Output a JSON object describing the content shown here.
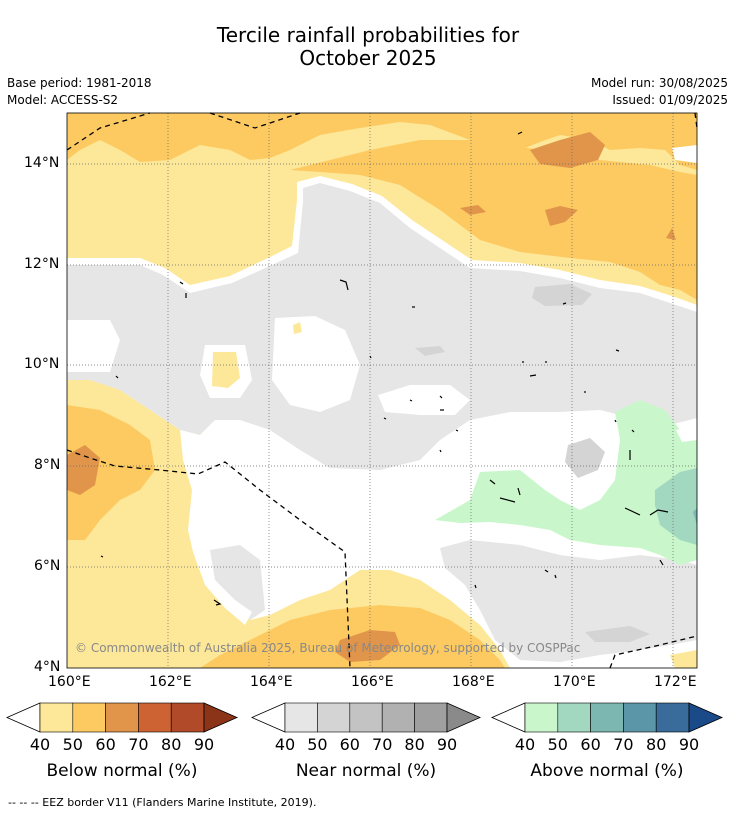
{
  "title_line1": "Tercile rainfall probabilities for",
  "title_line2": "October 2025",
  "base_period": "Base period: 1981-2018",
  "model": "Model: ACCESS-S2",
  "model_run": "Model run: 30/08/2025",
  "issued": "Issued: 01/09/2025",
  "copyright": "© Commonwealth of Australia 2025, Bureau of Meteorology, supported by COSPPac",
  "footer": "--  --  -- EEZ border V11 (Flanders Marine Institute, 2019).",
  "map": {
    "lon_ticks": [
      "160°E",
      "162°E",
      "164°E",
      "166°E",
      "168°E",
      "170°E",
      "172°E"
    ],
    "lat_ticks": [
      "14°N",
      "12°N",
      "10°N",
      "8°N",
      "6°N",
      "4°N"
    ],
    "lon_range": [
      160,
      172.5
    ],
    "lat_range": [
      3.9,
      14.9
    ]
  },
  "colorbars": [
    {
      "label": "Below normal (%)",
      "ticks": [
        "40",
        "50",
        "60",
        "70",
        "80",
        "90"
      ],
      "colors": [
        "#ffffff",
        "#fde89a",
        "#fdca62",
        "#e0954a",
        "#cd6333",
        "#b04a28",
        "#8c3418"
      ]
    },
    {
      "label": "Near normal (%)",
      "ticks": [
        "40",
        "50",
        "60",
        "70",
        "80",
        "90"
      ],
      "colors": [
        "#ffffff",
        "#e6e6e6",
        "#d4d4d4",
        "#c3c3c3",
        "#b1b1b1",
        "#9f9f9f",
        "#8a8a8a"
      ]
    },
    {
      "label": "Above normal (%)",
      "ticks": [
        "40",
        "50",
        "60",
        "70",
        "80",
        "90"
      ],
      "colors": [
        "#ffffff",
        "#c9f7cb",
        "#a3d8c0",
        "#7cb7b1",
        "#5b95a8",
        "#3a6c9b",
        "#1b4a88"
      ]
    }
  ]
}
